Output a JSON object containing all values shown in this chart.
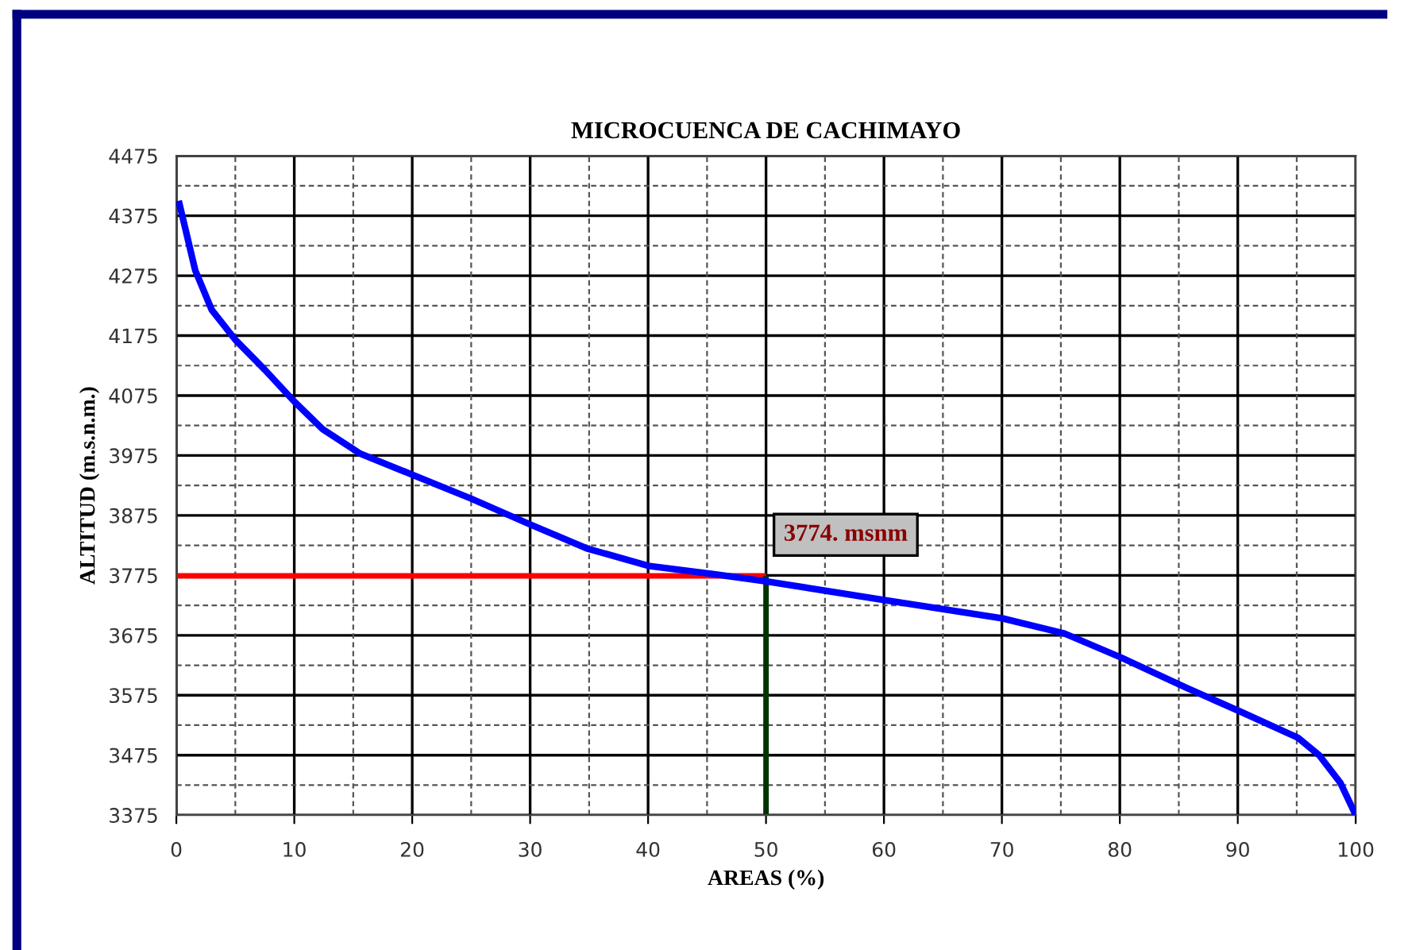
{
  "chart_data": {
    "type": "line",
    "title": "MICROCUENCA DE CACHIMAYO",
    "xlabel": "AREAS (%)",
    "ylabel": "ALTITUD (m.s.n.m.)",
    "xlim": [
      0,
      100
    ],
    "xticks": [
      0,
      10,
      20,
      30,
      40,
      50,
      60,
      70,
      80,
      90,
      100
    ],
    "ylim": [
      3375,
      4475
    ],
    "yticks": [
      3375,
      3475,
      3575,
      3675,
      3775,
      3875,
      3975,
      4075,
      4175,
      4275,
      4375,
      4475
    ],
    "grid": true,
    "legend": false,
    "marker": "none",
    "line_style": "solid",
    "series": [
      {
        "color": "#0000ff",
        "x": [
          0.2,
          1.6,
          3.0,
          5.0,
          7.5,
          10,
          12.4,
          15.6,
          20,
          25,
          30,
          34.8,
          40,
          45.6,
          50,
          60,
          70.1,
          75.3,
          80.1,
          85.7,
          90.3,
          95.1,
          96.9,
          98.7,
          100
        ],
        "values": [
          4400,
          4284,
          4218,
          4168,
          4118,
          4065,
          4019,
          3978,
          3943,
          3903,
          3860,
          3820,
          3791,
          3777,
          3765,
          3734,
          3703,
          3678,
          3638,
          3587,
          3547,
          3504,
          3475,
          3429,
          3375
        ]
      },
      {
        "color": "#ff0000",
        "x": [
          0,
          50
        ],
        "values": [
          3774,
          3774
        ]
      },
      {
        "color": "#003300",
        "x": [
          50,
          50
        ],
        "values": [
          3375,
          3774
        ]
      }
    ],
    "annotations": [
      {
        "text": "3774. msnm",
        "x": 50,
        "y": 3774
      }
    ]
  }
}
